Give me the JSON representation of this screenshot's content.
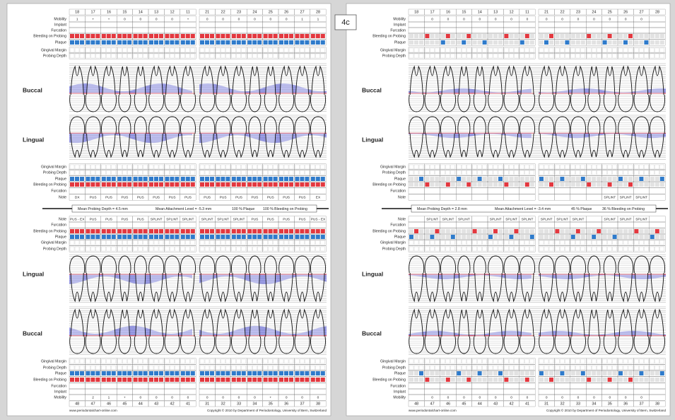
{
  "panels": [
    {
      "upper_teeth": [
        18,
        17,
        16,
        15,
        14,
        13,
        12,
        11,
        21,
        22,
        23,
        24,
        25,
        26,
        27,
        28
      ],
      "upper_buccal_rows": [
        "Mobility",
        "Implant",
        "Furcation",
        "Bleeding on Probing",
        "Plaque",
        "Gingival Margin",
        "Probing Depth"
      ],
      "upper_mobility": [
        1,
        "+",
        "+",
        0,
        0,
        0,
        0,
        "+",
        0,
        0,
        0,
        0,
        0,
        0,
        1,
        1
      ],
      "buccal": "Buccal",
      "lingual": "Lingual",
      "upper_palatal_rows": [
        "Gingival Margin",
        "Probing Depth",
        "Plaque",
        "Bleeding on Probing",
        "Furcation",
        "Note"
      ],
      "upper_notes": [
        "DX",
        "PUS",
        "PUS",
        "PUS",
        "PUS",
        "PUS",
        "PUS",
        "PUS",
        "PUS",
        "PUS",
        "PUS",
        "PUS",
        "PUS",
        "PUS",
        "PUS",
        "EX"
      ],
      "summary": [
        "Mean Probing Depth = 4.5 mm",
        "Mean Attachment Level = -5.3 mm",
        "100 % Plaque",
        "100 % Bleeding on Probing"
      ],
      "lower_lingual_rows": [
        "Note",
        "Furcation",
        "Bleeding on Probing",
        "Plaque",
        "Gingival Margin",
        "Probing Depth"
      ],
      "lower_notes": [
        "PUS - EX",
        "PUS",
        "PUS",
        "PUS",
        "PUS",
        "SPLINT",
        "SPLINT",
        "SPLINT",
        "SPLINT",
        "SPLINT",
        "SPLINT",
        "PUS",
        "PUS",
        "PUS",
        "PUS",
        "PUS - EX"
      ],
      "lower_buccal_rows": [
        "Gingival Margin",
        "Probing Depth",
        "Plaque",
        "Bleeding on Probing",
        "Furcation",
        "Implant",
        "Mobility"
      ],
      "lower_mobility": [
        null,
        2,
        1,
        "+",
        0,
        0,
        0,
        0,
        0,
        0,
        0,
        0,
        "+",
        0,
        0,
        0
      ],
      "lower_teeth": [
        48,
        47,
        46,
        45,
        44,
        43,
        42,
        41,
        31,
        32,
        33,
        34,
        35,
        36,
        37,
        38
      ],
      "footer_left": "www.periodontalchart-online.com",
      "footer_right": "Copyright © 2010 by Department of Periodontology, University of Bern, Switzerland"
    },
    {
      "label": "4c",
      "upper_teeth": [
        18,
        17,
        16,
        15,
        14,
        13,
        12,
        11,
        21,
        22,
        23,
        24,
        25,
        26,
        27,
        28
      ],
      "upper_buccal_rows": [
        "Mobility",
        "Implant",
        "Furcation",
        "Bleeding on Probing",
        "Plaque",
        "Gingival Margin",
        "Probing Depth"
      ],
      "upper_mobility": [
        null,
        0,
        0,
        0,
        0,
        0,
        0,
        0,
        0,
        0,
        0,
        0,
        0,
        0,
        0,
        null
      ],
      "buccal": "Buccal",
      "lingual": "Lingual",
      "upper_palatal_rows": [
        "Gingival Margin",
        "Probing Depth",
        "Plaque",
        "Bleeding on Probing",
        "Furcation",
        "Note"
      ],
      "upper_notes": [
        null,
        null,
        null,
        null,
        null,
        null,
        null,
        null,
        null,
        null,
        null,
        null,
        "SPLINT",
        "SPLINT",
        "SPLINT",
        null
      ],
      "summary": [
        "Mean Probing Depth = 2.8 mm",
        "Mean Attachment Level = -3.4 mm",
        "45 % Plaque",
        "36 % Bleeding on Probing"
      ],
      "lower_lingual_rows": [
        "Note",
        "Furcation",
        "Bleeding on Probing",
        "Plaque",
        "Gingival Margin",
        "Probing Depth"
      ],
      "lower_notes": [
        null,
        "SPLINT",
        "SPLINT",
        "SPLINT",
        null,
        "SPLINT",
        "SPLINT",
        "SPLINT",
        "SPLINT",
        "SPLINT",
        "SPLINT",
        null,
        "SPLINT",
        "SPLINT",
        "SPLINT",
        null
      ],
      "lower_buccal_rows": [
        "Gingival Margin",
        "Probing Depth",
        "Plaque",
        "Bleeding on Probing",
        "Furcation",
        "Implant",
        "Mobility"
      ],
      "lower_mobility": [
        null,
        0,
        0,
        0,
        0,
        0,
        0,
        0,
        0,
        0,
        0,
        0,
        0,
        0,
        0,
        null
      ],
      "lower_teeth": [
        48,
        47,
        46,
        45,
        44,
        43,
        42,
        41,
        31,
        32,
        33,
        34,
        35,
        36,
        37,
        38
      ],
      "footer_left": "www.periodontalchart-online.com",
      "footer_right": "Copyright © 2010 by Department of Periodontology, University of Bern, Switzerland"
    }
  ]
}
